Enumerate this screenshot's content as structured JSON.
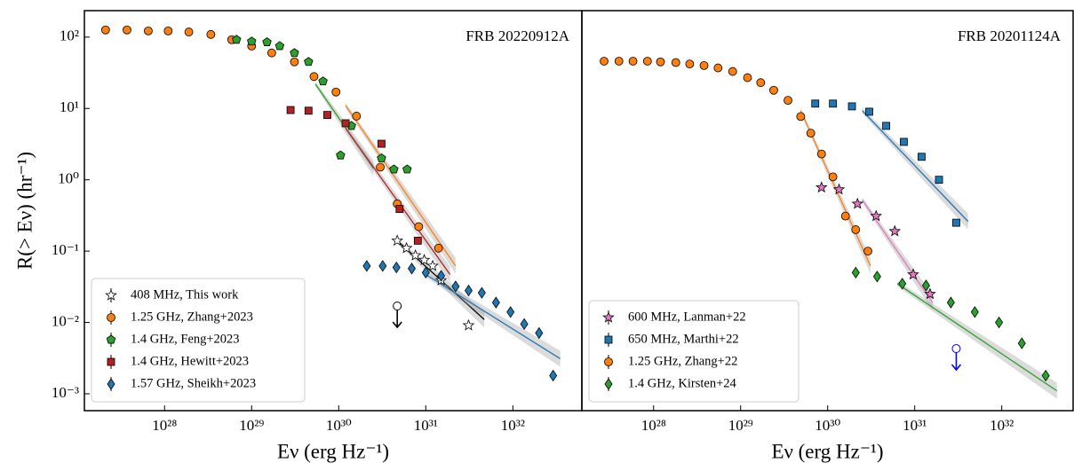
{
  "chart_data": [
    {
      "type": "scatter",
      "title": "FRB 20220912A",
      "xlabel": "Eν (erg Hz⁻¹)",
      "ylabel": "R(> Eν) (hr⁻¹)",
      "log_x": true,
      "log_y": true,
      "legend": "lower left",
      "xlim": [
        1.2e+27,
        6.2e+32
      ],
      "ylim": [
        0.00058,
        235
      ],
      "xticks": [
        {
          "value": 1e+28,
          "label": "10²⁸"
        },
        {
          "value": 1e+29,
          "label": "10²⁹"
        },
        {
          "value": 1e+30,
          "label": "10³⁰"
        },
        {
          "value": 1e+31,
          "label": "10³¹"
        },
        {
          "value": 1e+32,
          "label": "10³²"
        }
      ],
      "yticks": [
        {
          "value": 100,
          "label": "10²"
        },
        {
          "value": 10,
          "label": "10¹"
        },
        {
          "value": 1,
          "label": "10⁰"
        },
        {
          "value": 0.1,
          "label": "10⁻¹"
        },
        {
          "value": 0.01,
          "label": "10⁻²"
        },
        {
          "value": 0.001,
          "label": "10⁻³"
        }
      ],
      "series": [
        {
          "name": "408 MHz, This work",
          "color": "#ffffff",
          "edge": "#000000",
          "marker": "star",
          "x": [
            4.7e+30,
            6e+30,
            7.6e+30,
            9.6e+30,
            1.2e+31,
            1.5e+31,
            3.1e+31
          ],
          "values": [
            0.14,
            0.11,
            0.087,
            0.075,
            0.062,
            0.039,
            0.0091
          ]
        },
        {
          "name": "1.25 GHz, Zhang+2023",
          "color": "#ff7f0e",
          "edge": "#000000",
          "marker": "circle",
          "x": [
            2.1e+27,
            3.7e+27,
            6.5e+27,
            1.1e+28,
            1.9e+28,
            3.4e+28,
            5.9e+28,
            1e+29,
            1.7e+29,
            3.1e+29,
            5.2e+29,
            9.3e+29,
            1.6e+30,
            3e+30,
            4.7e+30,
            8.3e+30,
            1.4e+31
          ],
          "values": [
            126,
            126,
            122,
            122,
            118,
            109,
            92,
            75,
            60,
            45,
            28,
            17,
            7.8,
            1.5,
            0.46,
            0.22,
            0.11
          ]
        },
        {
          "name": "1.4 GHz, Feng+2023",
          "color": "#2ca02c",
          "edge": "#000000",
          "marker": "pentagon",
          "x": [
            6.7e+28,
            1e+29,
            1.5e+29,
            2.1e+29,
            3.1e+29,
            4.5e+29,
            6.6e+29,
            1.05e+30,
            1.4e+30,
            3.1e+30,
            4.3e+30,
            6.1e+30
          ],
          "values": [
            92,
            87,
            85,
            75,
            60,
            45,
            24,
            2.2,
            5.7,
            2.0,
            1.4,
            1.4
          ]
        },
        {
          "name": "1.4 GHz, Hewitt+2023",
          "color": "#b22222",
          "edge": "#000000",
          "marker": "square",
          "x": [
            2.8e+29,
            4.5e+29,
            7.4e+29,
            1.2e+30,
            3.1e+30,
            5e+30,
            8.1e+30
          ],
          "values": [
            9.5,
            9.3,
            8.1,
            6.2,
            3.2,
            0.39,
            0.14
          ]
        },
        {
          "name": "1.57 GHz, Sheikh+2023",
          "color": "#1f77b4",
          "edge": "#000000",
          "marker": "diamond",
          "x": [
            2.1e+30,
            3.2e+30,
            4.6e+30,
            6.9e+30,
            1e+31,
            1.5e+31,
            2.2e+31,
            3.1e+31,
            4.4e+31,
            6.4e+31,
            9.4e+31,
            1.35e+32,
            2e+32,
            2.9e+32
          ],
          "values": [
            0.062,
            0.062,
            0.059,
            0.057,
            0.05,
            0.045,
            0.032,
            0.028,
            0.026,
            0.019,
            0.014,
            0.0095,
            0.0071,
            0.0018
          ]
        }
      ],
      "fits": [
        {
          "color": "#ff7f0e",
          "x": [
            1.2e+30,
            2.2e+31
          ],
          "values": [
            11,
            0.062
          ]
        },
        {
          "color": "#2ca02c",
          "x": [
            5.4e+29,
            2.5e+30
          ],
          "values": [
            22,
            1.45
          ]
        },
        {
          "color": "#b22222",
          "x": [
            1.2e+30,
            1.9e+31
          ],
          "values": [
            5.3,
            0.047
          ]
        },
        {
          "color": "#000000",
          "x": [
            4.7e+30,
            4.7e+31
          ],
          "values": [
            0.14,
            0.011
          ]
        },
        {
          "color": "#1f77b4",
          "x": [
            1e+31,
            3.5e+32
          ],
          "values": [
            0.047,
            0.0031
          ]
        }
      ],
      "upper_limits": [
        {
          "color": "#000000",
          "x": 4.7e+30,
          "value": 0.017
        }
      ]
    },
    {
      "type": "scatter",
      "title": "FRB 20201124A",
      "xlabel": "Eν (erg Hz⁻¹)",
      "log_x": true,
      "log_y": true,
      "legend": "lower left",
      "xlim": [
        1.5e+27,
        6.6e+32
      ],
      "ylim": [
        0.00058,
        235
      ],
      "xticks": [
        {
          "value": 1e+28,
          "label": "10²⁸"
        },
        {
          "value": 1e+29,
          "label": "10²⁹"
        },
        {
          "value": 1e+30,
          "label": "10³⁰"
        },
        {
          "value": 1e+31,
          "label": "10³¹"
        },
        {
          "value": 1e+32,
          "label": "10³²"
        }
      ],
      "series": [
        {
          "name": "600 MHz, Lanman+22",
          "color": "#e377c2",
          "edge": "#000000",
          "marker": "star",
          "x": [
            8.5e+29,
            1.35e+30,
            2.2e+30,
            3.6e+30,
            5.9e+30,
            9.6e+30,
            1.5e+31
          ],
          "values": [
            0.78,
            0.73,
            0.46,
            0.31,
            0.19,
            0.047,
            0.025
          ]
        },
        {
          "name": "650 MHz, Marthi+22",
          "color": "#1f77b4",
          "edge": "#000000",
          "marker": "square",
          "x": [
            7.2e+29,
            1.15e+30,
            1.9e+30,
            3e+30,
            4.7e+30,
            7.5e+30,
            1.2e+31,
            1.9e+31,
            3e+31
          ],
          "values": [
            11.7,
            11.7,
            10.7,
            9.0,
            5.7,
            3.4,
            2.1,
            1.0,
            0.25
          ]
        },
        {
          "name": "1.25 GHz, Zhang+22",
          "color": "#ff7f0e",
          "edge": "#000000",
          "marker": "circle",
          "x": [
            2.7e+27,
            4e+27,
            5.8e+27,
            8.5e+27,
            1.2e+28,
            1.8e+28,
            2.6e+28,
            3.8e+28,
            5.5e+28,
            8.1e+28,
            1.2e+29,
            1.7e+29,
            2.4e+29,
            3.5e+29,
            4.9e+29,
            6.4e+29,
            8.5e+29,
            1.15e+30,
            1.6e+30,
            2.1e+30,
            2.9e+30
          ],
          "values": [
            46,
            46,
            46,
            46,
            45,
            44,
            42,
            40,
            37,
            33,
            27,
            23,
            18,
            13,
            7.7,
            4.5,
            2.3,
            1.1,
            0.31,
            0.2,
            0.1
          ]
        },
        {
          "name": "1.4 GHz, Kirsten+24",
          "color": "#2ca02c",
          "edge": "#000000",
          "marker": "diamond",
          "x": [
            2.1e+30,
            3.7e+30,
            7.2e+30,
            1.35e+31,
            2.6e+31,
            4.9e+31,
            9.3e+31,
            1.7e+32,
            3.2e+32
          ],
          "values": [
            0.05,
            0.044,
            0.035,
            0.033,
            0.019,
            0.014,
            0.01,
            0.0051,
            0.0018
          ]
        }
      ],
      "fits": [
        {
          "color": "#ff7f0e",
          "x": [
            4.9e+29,
            3.1e+30
          ],
          "values": [
            9.3,
            0.062
          ]
        },
        {
          "color": "#e377c2",
          "x": [
            2.5e+30,
            1.6e+31
          ],
          "values": [
            0.52,
            0.019
          ]
        },
        {
          "color": "#1f77b4",
          "x": [
            2.5e+30,
            4.1e+31
          ],
          "values": [
            9.3,
            0.26
          ]
        },
        {
          "color": "#2ca02c",
          "x": [
            6.3e+30,
            4.3e+32
          ],
          "values": [
            0.035,
            0.0011
          ]
        }
      ],
      "upper_limits": [
        {
          "color": "#0000ff",
          "x": 3e+31,
          "value": 0.0043
        }
      ]
    }
  ]
}
